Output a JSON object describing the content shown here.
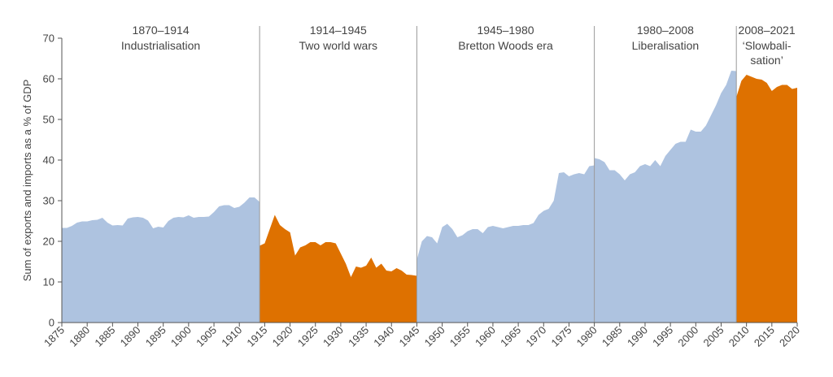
{
  "chart_data": {
    "type": "area",
    "ylabel": "Sum of exports and imports as a % of GDP",
    "ylim": [
      0,
      70
    ],
    "xlim": [
      1875,
      2020
    ],
    "yticks": [
      0,
      10,
      20,
      30,
      40,
      50,
      60,
      70
    ],
    "xticks": [
      1875,
      1880,
      1885,
      1890,
      1895,
      1900,
      1905,
      1910,
      1915,
      1920,
      1925,
      1930,
      1935,
      1940,
      1945,
      1950,
      1955,
      1960,
      1965,
      1970,
      1975,
      1980,
      1985,
      1990,
      1995,
      2000,
      2005,
      2010,
      2015,
      2020
    ],
    "colors": {
      "peace": "#aec3e0",
      "war": "#de7100",
      "divider": "#999999",
      "axis": "#555555"
    },
    "eras": [
      {
        "start": 1870,
        "end": 1914,
        "label": "1870–1914",
        "title": [
          "Industrialisation"
        ]
      },
      {
        "start": 1914,
        "end": 1945,
        "label": "1914–1945",
        "title": [
          "Two world wars"
        ]
      },
      {
        "start": 1945,
        "end": 1980,
        "label": "1945–1980",
        "title": [
          "Bretton Woods era"
        ]
      },
      {
        "start": 1980,
        "end": 2008,
        "label": "1980–2008",
        "title": [
          "Liberalisation"
        ]
      },
      {
        "start": 2008,
        "end": 2021,
        "label": "2008–2021",
        "title": [
          "‘Slowbali-",
          "sation’"
        ]
      }
    ],
    "series": [
      {
        "segment": "1870–1914",
        "color_key": "peace",
        "x": [
          1875,
          1876,
          1877,
          1878,
          1879,
          1880,
          1881,
          1882,
          1883,
          1884,
          1885,
          1886,
          1887,
          1888,
          1889,
          1890,
          1891,
          1892,
          1893,
          1894,
          1895,
          1896,
          1897,
          1898,
          1899,
          1900,
          1901,
          1902,
          1903,
          1904,
          1905,
          1906,
          1907,
          1908,
          1909,
          1910,
          1911,
          1912,
          1913,
          1914
        ],
        "y": [
          23.3,
          23.3,
          23.8,
          24.6,
          24.9,
          24.9,
          25.2,
          25.3,
          25.8,
          24.6,
          23.9,
          24.0,
          23.9,
          25.6,
          25.9,
          26.0,
          25.8,
          25.1,
          23.2,
          23.6,
          23.4,
          25.0,
          25.8,
          26.0,
          25.9,
          26.4,
          25.8,
          26.0,
          26.0,
          26.1,
          27.2,
          28.6,
          28.9,
          28.9,
          28.2,
          28.5,
          29.5,
          30.8,
          30.8,
          29.7
        ]
      },
      {
        "segment": "1914–1945",
        "color_key": "war",
        "x": [
          1914,
          1915,
          1916,
          1917,
          1918,
          1919,
          1920,
          1921,
          1922,
          1923,
          1924,
          1925,
          1926,
          1927,
          1928,
          1929,
          1930,
          1931,
          1932,
          1933,
          1934,
          1935,
          1936,
          1937,
          1938,
          1939,
          1940,
          1941,
          1942,
          1943,
          1944,
          1945
        ],
        "y": [
          18.9,
          19.5,
          23.0,
          26.5,
          24.0,
          23.0,
          22.2,
          16.5,
          18.5,
          19.0,
          19.8,
          19.8,
          19.0,
          19.8,
          19.8,
          19.5,
          17.0,
          14.5,
          11.2,
          13.8,
          13.5,
          14.0,
          16.0,
          13.5,
          14.5,
          12.8,
          12.6,
          13.4,
          12.8,
          11.8,
          11.7,
          11.5
        ]
      },
      {
        "segment": "1945–1980",
        "color_key": "peace",
        "x": [
          1945,
          1946,
          1947,
          1948,
          1949,
          1950,
          1951,
          1952,
          1953,
          1954,
          1955,
          1956,
          1957,
          1958,
          1959,
          1960,
          1961,
          1962,
          1963,
          1964,
          1965,
          1966,
          1967,
          1968,
          1969,
          1970,
          1971,
          1972,
          1973,
          1974,
          1975,
          1976,
          1977,
          1978,
          1979,
          1980
        ],
        "y": [
          15.5,
          20.0,
          21.3,
          21.0,
          19.5,
          23.5,
          24.3,
          23.0,
          21.0,
          21.5,
          22.5,
          23.0,
          23.0,
          22.0,
          23.5,
          23.8,
          23.5,
          23.2,
          23.5,
          23.8,
          23.8,
          24.0,
          24.0,
          24.5,
          26.5,
          27.5,
          28.0,
          30.0,
          36.8,
          37.0,
          36.0,
          36.5,
          36.8,
          36.5,
          38.5,
          38.7
        ]
      },
      {
        "segment": "1980–2008",
        "color_key": "peace",
        "x": [
          1980,
          1981,
          1982,
          1983,
          1984,
          1985,
          1986,
          1987,
          1988,
          1989,
          1990,
          1991,
          1992,
          1993,
          1994,
          1995,
          1996,
          1997,
          1998,
          1999,
          2000,
          2001,
          2002,
          2003,
          2004,
          2005,
          2006,
          2007,
          2008
        ],
        "y": [
          40.5,
          40.2,
          39.5,
          37.5,
          37.5,
          36.5,
          35.0,
          36.5,
          37.0,
          38.5,
          39.0,
          38.5,
          40.0,
          38.5,
          41.0,
          42.5,
          44.0,
          44.5,
          44.5,
          47.5,
          47.0,
          47.0,
          48.5,
          51.0,
          53.5,
          56.5,
          58.5,
          62.0,
          61.9
        ]
      },
      {
        "segment": "2008–2021",
        "color_key": "war",
        "x": [
          2008,
          2009,
          2010,
          2011,
          2012,
          2013,
          2014,
          2015,
          2016,
          2017,
          2018,
          2019,
          2020
        ],
        "y": [
          55.5,
          59.5,
          61.0,
          60.5,
          60.0,
          59.8,
          59.0,
          57.0,
          58.0,
          58.5,
          58.5,
          57.5,
          57.8
        ]
      }
    ]
  }
}
